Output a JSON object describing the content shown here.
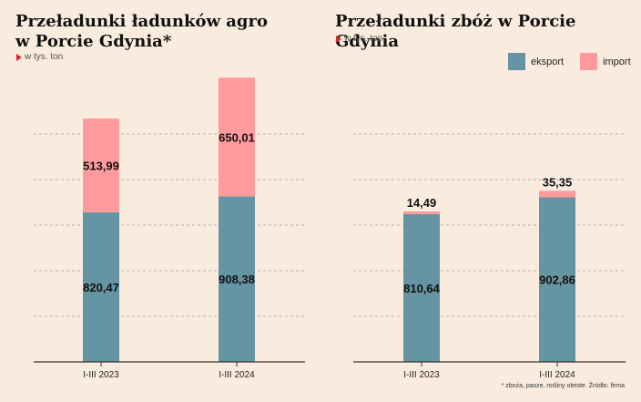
{
  "colors": {
    "eksport": "#6594a3",
    "import": "#fe9a9b",
    "grid": "#9a9a9a",
    "axis": "#333333"
  },
  "left": {
    "title_line1": "Przeładunki ładunków agro",
    "title_line2": "w Porcie Gdynia*",
    "unit": "w tys. ton"
  },
  "right": {
    "title": "Przeładunki zbóż w Porcie Gdynia",
    "unit": "w tys. ton"
  },
  "legend": {
    "eksport": "eksport",
    "import": "import"
  },
  "footnote": "* zboża, pasze, rośliny oleiste. Źródło: firma",
  "chart_data": [
    {
      "type": "bar",
      "stacked": true,
      "title": "Przeładunki ładunków agro w Porcie Gdynia*",
      "categories": [
        "I-III 2023",
        "I-III 2024"
      ],
      "series": [
        {
          "name": "eksport",
          "values": [
            820.47,
            908.38
          ],
          "labels": [
            "820,47",
            "908,38"
          ]
        },
        {
          "name": "import",
          "values": [
            513.99,
            650.01
          ],
          "labels": [
            "513,99",
            "650,01"
          ]
        }
      ],
      "ylim": [
        0,
        1600
      ],
      "grid": true
    },
    {
      "type": "bar",
      "stacked": true,
      "title": "Przeładunki zbóż w Porcie Gdynia",
      "categories": [
        "I-III 2023",
        "I-III 2024"
      ],
      "series": [
        {
          "name": "eksport",
          "values": [
            810.64,
            902.86
          ],
          "labels": [
            "810,64",
            "902,86"
          ]
        },
        {
          "name": "import",
          "values": [
            14.49,
            35.35
          ],
          "labels": [
            "14,49",
            "35,35"
          ]
        }
      ],
      "ylim": [
        0,
        1600
      ],
      "grid": true,
      "legend": "top-right"
    }
  ]
}
